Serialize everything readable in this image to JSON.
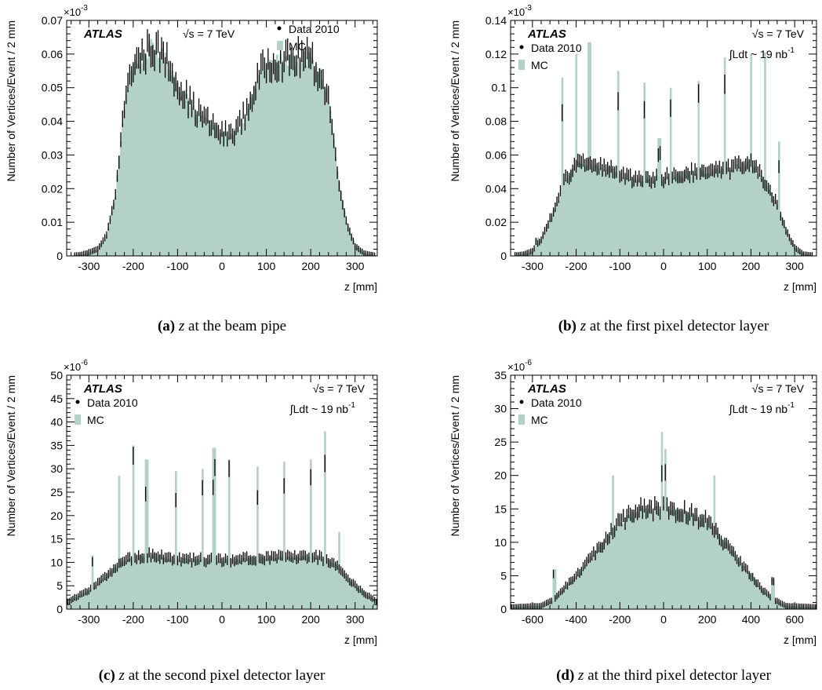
{
  "colors": {
    "mc_fill": "#b3d1c8",
    "data": "#000000",
    "axis": "#000000"
  },
  "captions": [
    {
      "label": "(a)",
      "var": "z",
      "text": "at the beam pipe"
    },
    {
      "label": "(b)",
      "var": "z",
      "text": "at the first pixel detector layer"
    },
    {
      "label": "(c)",
      "var": "z",
      "text": "at the second pixel detector layer"
    },
    {
      "label": "(d)",
      "var": "z",
      "text": "at the third pixel detector layer"
    }
  ],
  "chart_data": [
    {
      "type": "bar",
      "title": "",
      "xlabel": "z [mm]",
      "ylabel": "Number of Vertices/Event / 2 mm",
      "y_exponent": "×10^-3",
      "xlim": [
        -350,
        350
      ],
      "ylim": [
        0,
        0.07
      ],
      "xticks": [
        -300,
        -200,
        -100,
        0,
        100,
        200,
        300
      ],
      "yticks": [
        0,
        0.01,
        0.02,
        0.03,
        0.04,
        0.05,
        0.06,
        0.07
      ],
      "ytick_labels": [
        "0",
        "0.01",
        "0.02",
        "0.03",
        "0.04",
        "0.05",
        "0.06",
        "0.07"
      ],
      "legend": {
        "placement": "top",
        "experiment": "ATLAS",
        "energy": "√s = 7 TeV",
        "data_label": "Data 2010",
        "mc_label": "MC"
      },
      "profile": {
        "x": [
          -350,
          -320,
          -300,
          -280,
          -260,
          -240,
          -220,
          -200,
          -180,
          -160,
          -140,
          -120,
          -100,
          -80,
          -60,
          -40,
          -20,
          0,
          20,
          40,
          60,
          80,
          100,
          120,
          140,
          160,
          180,
          200,
          220,
          240,
          260,
          280,
          300,
          320,
          350
        ],
        "y": [
          0,
          0.0003,
          0.001,
          0.002,
          0.006,
          0.018,
          0.045,
          0.057,
          0.059,
          0.062,
          0.06,
          0.057,
          0.051,
          0.047,
          0.043,
          0.041,
          0.038,
          0.036,
          0.036,
          0.039,
          0.044,
          0.052,
          0.057,
          0.058,
          0.058,
          0.058,
          0.059,
          0.058,
          0.054,
          0.047,
          0.025,
          0.01,
          0.003,
          0.0008,
          0
        ]
      },
      "spikes": []
    },
    {
      "type": "bar",
      "title": "",
      "xlabel": "z [mm]",
      "ylabel": "Number of Vertices/Event / 2 mm",
      "y_exponent": "×10^-3",
      "xlim": [
        -350,
        350
      ],
      "ylim": [
        0,
        0.14
      ],
      "xticks": [
        -300,
        -200,
        -100,
        0,
        100,
        200,
        300
      ],
      "yticks": [
        0,
        0.02,
        0.04,
        0.06,
        0.08,
        0.1,
        0.12,
        0.14
      ],
      "ytick_labels": [
        "0",
        "0.02",
        "0.04",
        "0.06",
        "0.08",
        "0.1",
        "0.12",
        "0.14"
      ],
      "legend": {
        "placement": "top",
        "experiment": "ATLAS",
        "energy": "√s = 7 TeV",
        "lumi": "∫Ldt ~ 19 nb⁻¹",
        "data_label": "Data 2010",
        "mc_label": "MC"
      },
      "profile": {
        "x": [
          -350,
          -320,
          -300,
          -280,
          -260,
          -240,
          -230,
          -200,
          -160,
          -120,
          -80,
          -40,
          0,
          40,
          80,
          120,
          160,
          200,
          230,
          240,
          260,
          280,
          300,
          320,
          350
        ],
        "y": [
          0,
          0.001,
          0.003,
          0.01,
          0.022,
          0.033,
          0.043,
          0.055,
          0.053,
          0.052,
          0.046,
          0.046,
          0.046,
          0.048,
          0.05,
          0.05,
          0.052,
          0.055,
          0.045,
          0.04,
          0.03,
          0.015,
          0.005,
          0.001,
          0
        ]
      },
      "spikes": [
        {
          "x": -290,
          "y": 0.011
        },
        {
          "x": -232,
          "y": 0.106
        },
        {
          "x": -200,
          "y": 0.12
        },
        {
          "x": -170,
          "y": 0.127
        },
        {
          "x": -105,
          "y": 0.11
        },
        {
          "x": -45,
          "y": 0.103
        },
        {
          "x": -10,
          "y": 0.07
        },
        {
          "x": 15,
          "y": 0.1
        },
        {
          "x": 80,
          "y": 0.104
        },
        {
          "x": 140,
          "y": 0.118
        },
        {
          "x": 200,
          "y": 0.12
        },
        {
          "x": 232,
          "y": 0.121
        },
        {
          "x": 265,
          "y": 0.068
        }
      ]
    },
    {
      "type": "bar",
      "title": "",
      "xlabel": "z [mm]",
      "ylabel": "Number of Vertices/Event / 2 mm",
      "y_exponent": "×10^-6",
      "xlim": [
        -350,
        350
      ],
      "ylim": [
        0,
        50
      ],
      "xticks": [
        -300,
        -200,
        -100,
        0,
        100,
        200,
        300
      ],
      "yticks": [
        0,
        5,
        10,
        15,
        20,
        25,
        30,
        35,
        40,
        45,
        50
      ],
      "ytick_labels": [
        "0",
        "5",
        "10",
        "15",
        "20",
        "25",
        "30",
        "35",
        "40",
        "45",
        "50"
      ],
      "legend": {
        "placement": "top",
        "experiment": "ATLAS",
        "energy": "√s = 7 TeV",
        "lumi": "∫Ldt ~ 19 nb⁻¹",
        "data_label": "Data 2010",
        "mc_label": "MC"
      },
      "profile": {
        "x": [
          -350,
          -320,
          -300,
          -260,
          -240,
          -220,
          -200,
          -160,
          -120,
          -80,
          -40,
          0,
          40,
          80,
          120,
          160,
          200,
          220,
          240,
          260,
          280,
          300,
          320,
          350
        ],
        "y": [
          1.5,
          3,
          4,
          7,
          9,
          10.5,
          11,
          11.5,
          11,
          10.5,
          10.5,
          10.5,
          10.5,
          11,
          11,
          11,
          11.5,
          11,
          10.5,
          9,
          7,
          5,
          3.5,
          1.5
        ]
      },
      "spikes": [
        {
          "x": -292,
          "y": 11.5
        },
        {
          "x": -232,
          "y": 28.5
        },
        {
          "x": -200,
          "y": 35
        },
        {
          "x": -170,
          "y": 32
        },
        {
          "x": -105,
          "y": 29.5
        },
        {
          "x": -45,
          "y": 30
        },
        {
          "x": -18,
          "y": 34.5
        },
        {
          "x": 15,
          "y": 32
        },
        {
          "x": 80,
          "y": 30.5
        },
        {
          "x": 140,
          "y": 31.5
        },
        {
          "x": 200,
          "y": 32
        },
        {
          "x": 232,
          "y": 38
        },
        {
          "x": 265,
          "y": 16.5
        }
      ]
    },
    {
      "type": "bar",
      "title": "",
      "xlabel": "z [mm]",
      "ylabel": "Number of Vertices/Event / 2 mm",
      "y_exponent": "×10^-6",
      "xlim": [
        -700,
        700
      ],
      "ylim": [
        0,
        35
      ],
      "xticks": [
        -600,
        -400,
        -200,
        0,
        200,
        400,
        600
      ],
      "yticks": [
        0,
        5,
        10,
        15,
        20,
        25,
        30,
        35
      ],
      "ytick_labels": [
        "0",
        "5",
        "10",
        "15",
        "20",
        "25",
        "30",
        "35"
      ],
      "legend": {
        "placement": "top",
        "experiment": "ATLAS",
        "energy": "√s = 7 TeV",
        "lumi": "∫Ldt ~ 19 nb⁻¹",
        "data_label": "Data 2010",
        "mc_label": "MC"
      },
      "profile": {
        "x": [
          -700,
          -560,
          -500,
          -460,
          -400,
          -300,
          -200,
          -100,
          0,
          100,
          200,
          300,
          400,
          450,
          500,
          560,
          700
        ],
        "y": [
          0.3,
          0.5,
          1.5,
          3,
          5,
          9,
          13,
          15,
          15,
          14.5,
          13,
          9,
          5,
          3,
          1.5,
          0.5,
          0.3
        ]
      },
      "spikes": [
        {
          "x": -500,
          "y": 6
        },
        {
          "x": -235,
          "y": 20
        },
        {
          "x": -10,
          "y": 26.5
        },
        {
          "x": 10,
          "y": 24
        },
        {
          "x": 235,
          "y": 20
        },
        {
          "x": 500,
          "y": 4.5
        }
      ]
    }
  ]
}
